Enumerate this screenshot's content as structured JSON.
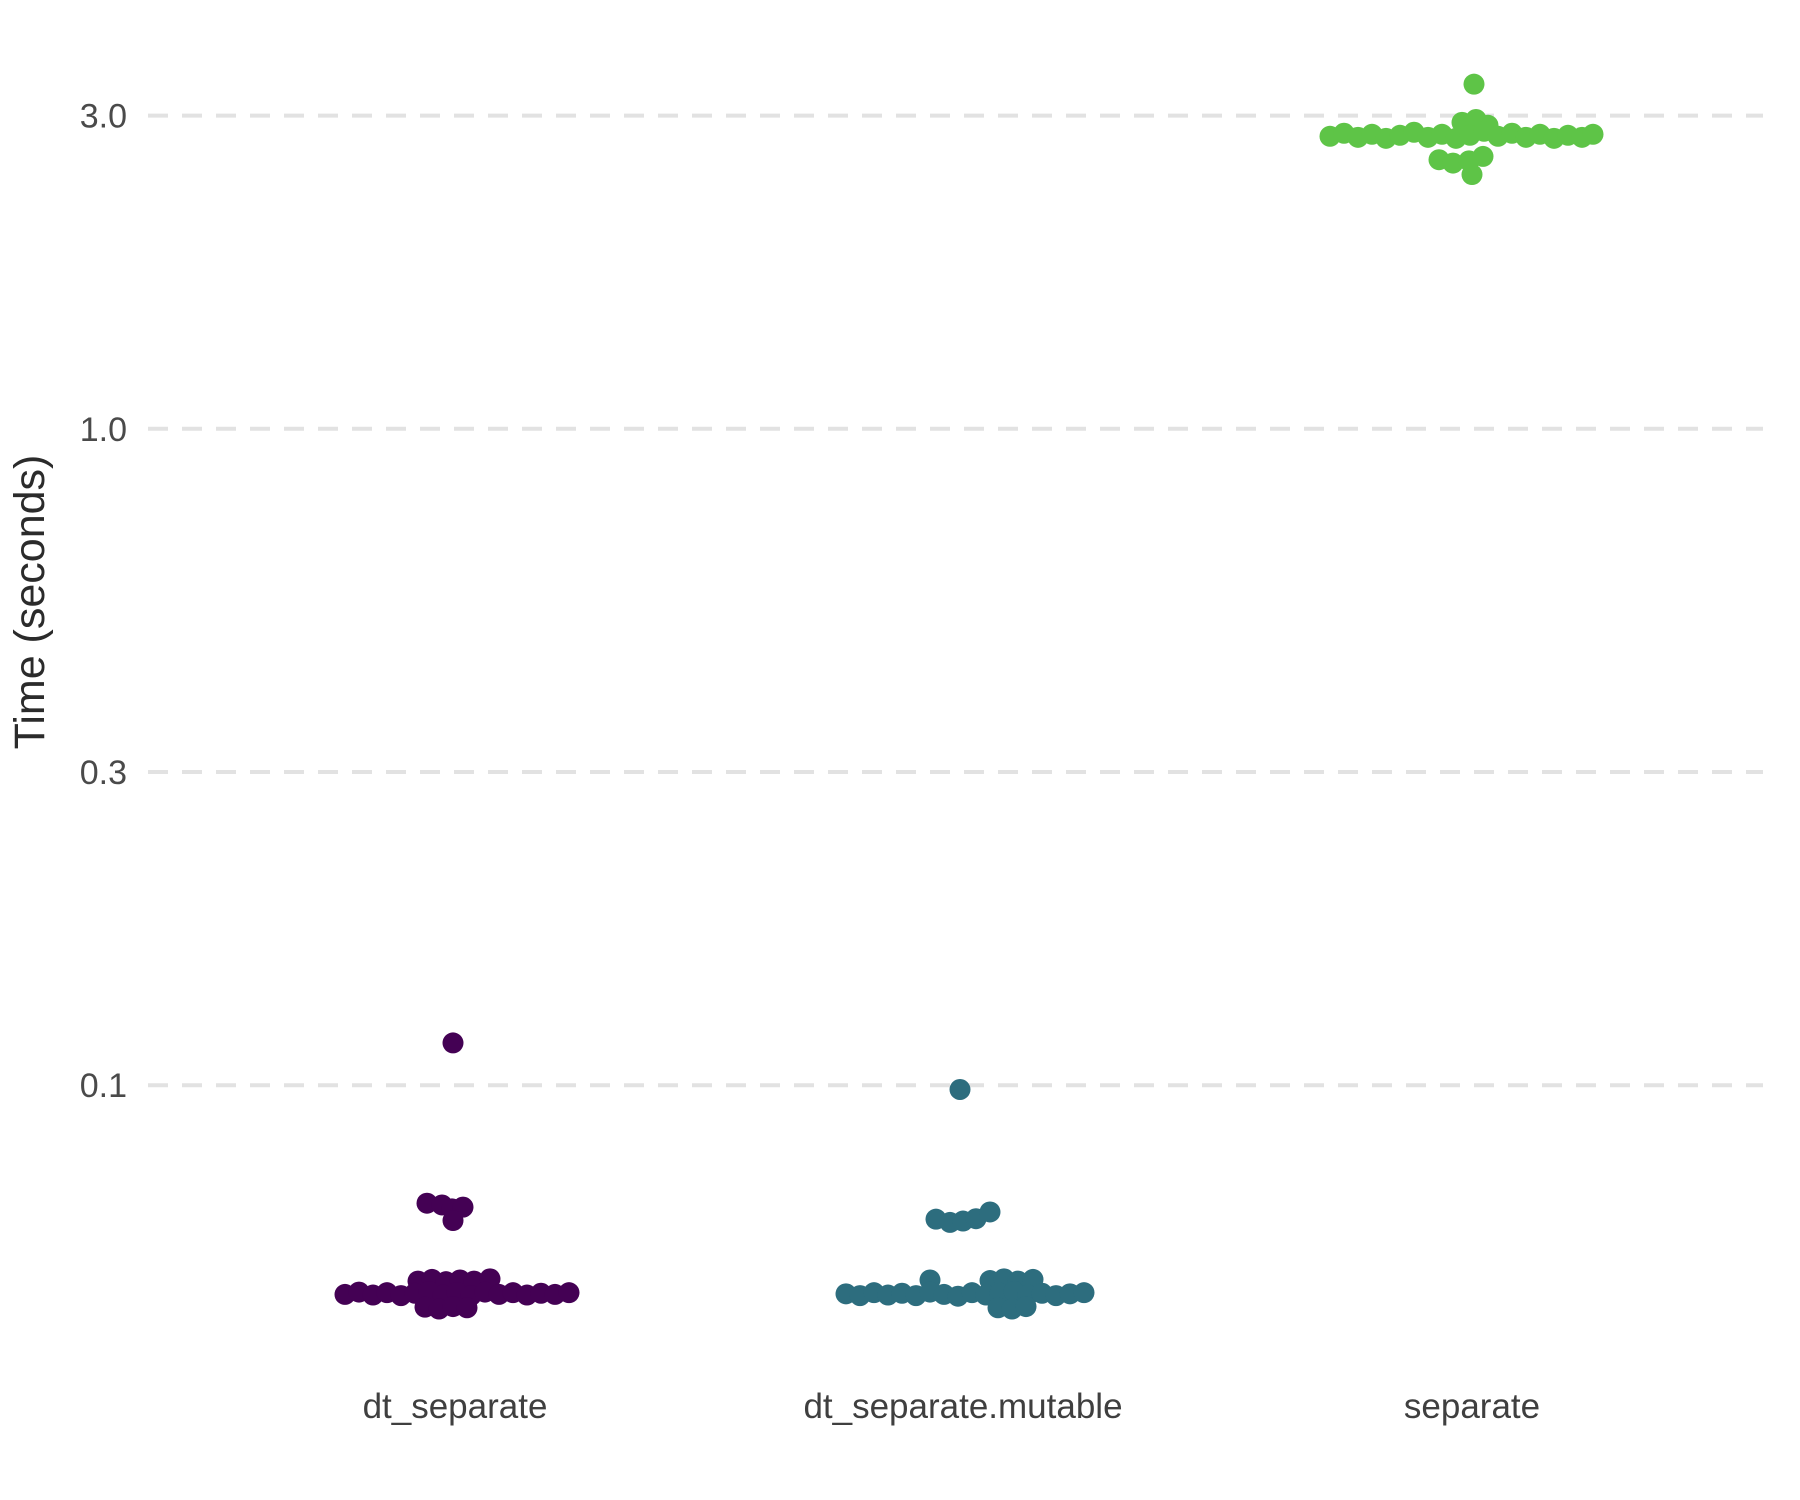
{
  "chart_data": {
    "type": "scatter",
    "variant": "jittered strip plot (benchmark timings)",
    "title": "",
    "xlabel": "",
    "ylabel": "Time (seconds)",
    "y_scale": "log10",
    "ylim": [
      0.04,
      3.6
    ],
    "grid": "horizontal dashed lines at each y tick",
    "legend": "none",
    "background": "#ffffff",
    "grid_color": "#e2e2e2",
    "y_ticks": [
      3.0,
      1.0,
      0.3,
      0.1
    ],
    "y_tick_labels": [
      "3.0",
      "1.0",
      "0.3",
      "0.1"
    ],
    "categories": [
      "dt_separate",
      "dt_separate.mutable",
      "separate"
    ],
    "colors": [
      "#440154",
      "#2d6d7e",
      "#5ec447"
    ],
    "point_format": [
      "jitter_dx_px",
      "time_seconds"
    ],
    "series": [
      {
        "name": "dt_separate",
        "color": "#440154",
        "points": [
          [
            -2,
            0.116
          ],
          [
            -28,
            0.0661
          ],
          [
            -13,
            0.0657
          ],
          [
            -3,
            0.0648
          ],
          [
            8,
            0.0652
          ],
          [
            -2,
            0.0622
          ],
          [
            -37,
            0.0503
          ],
          [
            -23,
            0.0506
          ],
          [
            -9,
            0.0502
          ],
          [
            5,
            0.0505
          ],
          [
            19,
            0.0503
          ],
          [
            35,
            0.0507
          ],
          [
            -110,
            0.048
          ],
          [
            -96,
            0.0484
          ],
          [
            -82,
            0.0479
          ],
          [
            -68,
            0.0483
          ],
          [
            -54,
            0.0478
          ],
          [
            -40,
            0.0482
          ],
          [
            -26,
            0.0485
          ],
          [
            -12,
            0.0479
          ],
          [
            2,
            0.0483
          ],
          [
            16,
            0.0478
          ],
          [
            30,
            0.0484
          ],
          [
            44,
            0.048
          ],
          [
            58,
            0.0483
          ],
          [
            72,
            0.0479
          ],
          [
            86,
            0.0482
          ],
          [
            100,
            0.048
          ],
          [
            114,
            0.0483
          ],
          [
            -30,
            0.0459
          ],
          [
            -16,
            0.0456
          ],
          [
            -2,
            0.046
          ],
          [
            12,
            0.0458
          ]
        ]
      },
      {
        "name": "dt_separate.mutable",
        "color": "#2d6d7e",
        "points": [
          [
            -3,
            0.0985
          ],
          [
            -27,
            0.0625
          ],
          [
            -13,
            0.0618
          ],
          [
            0,
            0.0621
          ],
          [
            13,
            0.0626
          ],
          [
            27,
            0.0641
          ],
          [
            -33,
            0.0505
          ],
          [
            27,
            0.0504
          ],
          [
            41,
            0.0507
          ],
          [
            55,
            0.0503
          ],
          [
            70,
            0.0506
          ],
          [
            -117,
            0.0481
          ],
          [
            -103,
            0.0478
          ],
          [
            -89,
            0.0483
          ],
          [
            -75,
            0.0479
          ],
          [
            -61,
            0.0482
          ],
          [
            -47,
            0.0478
          ],
          [
            -33,
            0.0484
          ],
          [
            -19,
            0.048
          ],
          [
            -5,
            0.0477
          ],
          [
            9,
            0.0483
          ],
          [
            23,
            0.0479
          ],
          [
            37,
            0.0482
          ],
          [
            51,
            0.0485
          ],
          [
            65,
            0.0479
          ],
          [
            79,
            0.0482
          ],
          [
            93,
            0.0478
          ],
          [
            107,
            0.0481
          ],
          [
            121,
            0.0483
          ],
          [
            35,
            0.0458
          ],
          [
            49,
            0.0456
          ],
          [
            63,
            0.046
          ]
        ]
      },
      {
        "name": "separate",
        "color": "#5ec447",
        "points": [
          [
            2,
            3.35
          ],
          [
            -10,
            2.93
          ],
          [
            4,
            2.96
          ],
          [
            16,
            2.9
          ],
          [
            -142,
            2.79
          ],
          [
            -128,
            2.82
          ],
          [
            -114,
            2.78
          ],
          [
            -100,
            2.81
          ],
          [
            -86,
            2.77
          ],
          [
            -72,
            2.8
          ],
          [
            -58,
            2.83
          ],
          [
            -44,
            2.78
          ],
          [
            -30,
            2.81
          ],
          [
            -16,
            2.77
          ],
          [
            -2,
            2.8
          ],
          [
            12,
            2.84
          ],
          [
            26,
            2.79
          ],
          [
            40,
            2.82
          ],
          [
            54,
            2.78
          ],
          [
            68,
            2.81
          ],
          [
            82,
            2.77
          ],
          [
            96,
            2.8
          ],
          [
            110,
            2.78
          ],
          [
            121,
            2.81
          ],
          [
            -33,
            2.57
          ],
          [
            -19,
            2.54
          ],
          [
            -3,
            2.56
          ],
          [
            11,
            2.6
          ],
          [
            0,
            2.44
          ]
        ]
      }
    ]
  }
}
